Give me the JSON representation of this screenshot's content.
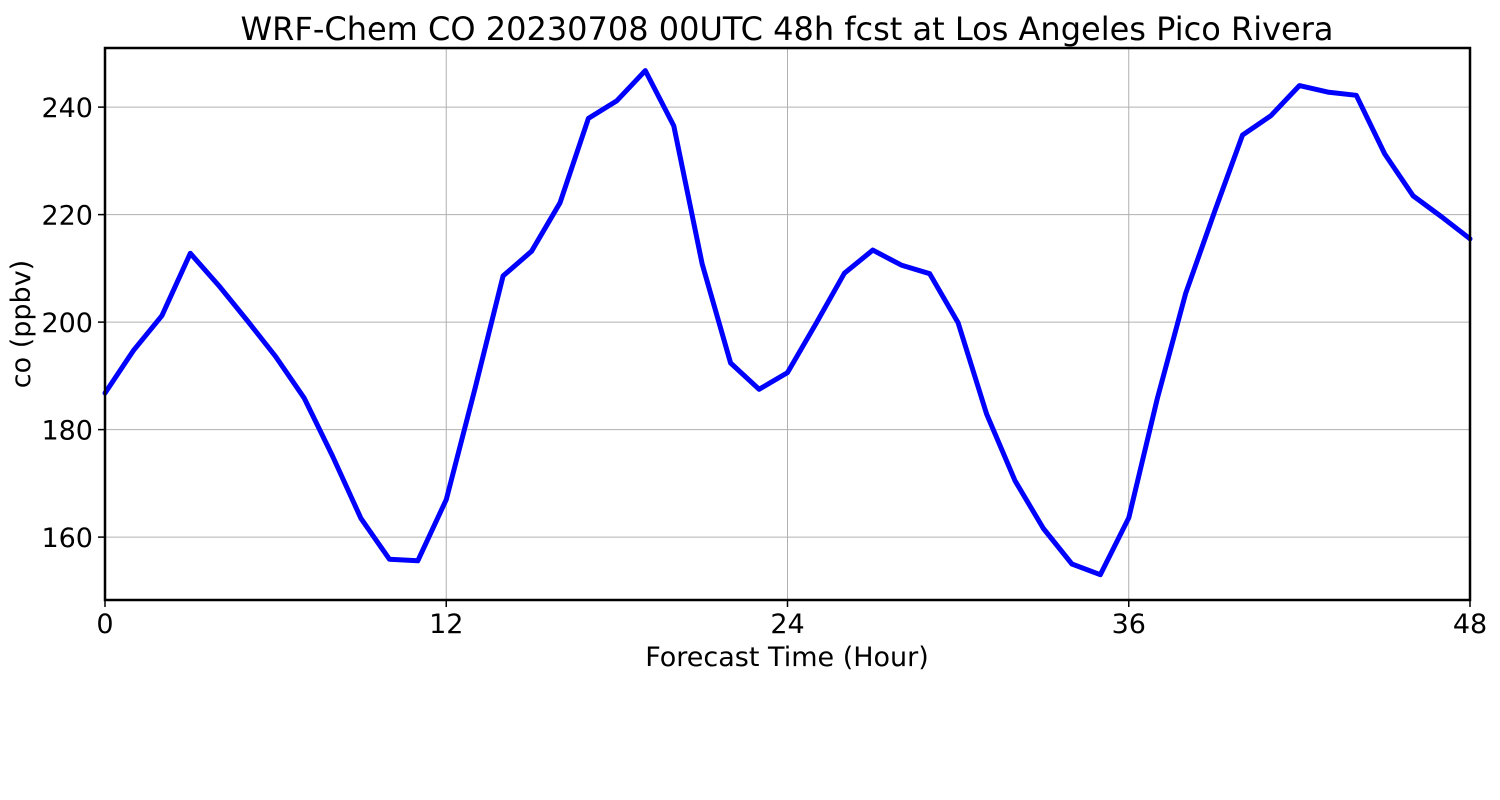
{
  "chart_data": {
    "type": "line",
    "title": "WRF-Chem CO  20230708 00UTC 48h fcst at Los Angeles Pico Rivera",
    "xlabel": "Forecast Time (Hour)",
    "ylabel": "co  (ppbv)",
    "xlim": [
      0,
      48
    ],
    "ylim": [
      148.3,
      251.0
    ],
    "xticks": [
      0,
      12,
      24,
      36,
      48
    ],
    "yticks": [
      160,
      180,
      200,
      220,
      240
    ],
    "grid": true,
    "series": [
      {
        "color": "#0000ff",
        "x": [
          0,
          1,
          2,
          3,
          4,
          5,
          6,
          7,
          8,
          9,
          10,
          11,
          12,
          13,
          14,
          15,
          16,
          17,
          18,
          19,
          20,
          21,
          22,
          23,
          24,
          25,
          26,
          27,
          28,
          29,
          30,
          31,
          32,
          33,
          34,
          35,
          36,
          37,
          38,
          39,
          40,
          41,
          42,
          43,
          44,
          45,
          46,
          47,
          48
        ],
        "values": [
          186.8,
          194.7,
          201.2,
          212.8,
          206.8,
          200.3,
          193.6,
          185.9,
          175.1,
          163.5,
          155.9,
          155.6,
          167.0,
          187.4,
          208.6,
          213.2,
          222.2,
          237.9,
          241.2,
          246.8,
          236.5,
          210.8,
          192.4,
          187.5,
          190.6,
          199.7,
          209.1,
          213.4,
          210.6,
          209.0,
          199.9,
          182.9,
          170.5,
          161.6,
          155.0,
          153.0,
          163.6,
          185.7,
          205.3,
          220.3,
          234.8,
          238.4,
          244.0,
          242.8,
          242.2,
          231.3,
          223.5,
          219.6,
          215.5
        ]
      }
    ]
  }
}
